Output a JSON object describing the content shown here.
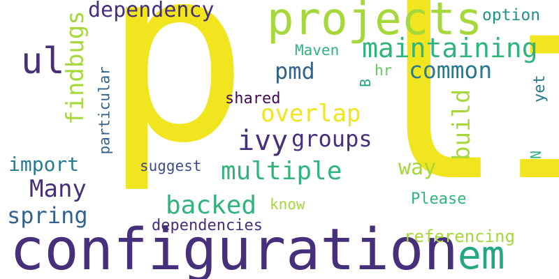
{
  "colors": {
    "background": "#ffffff",
    "yellow": "#f0e51f",
    "lime": "#a6d83c",
    "green_light": "#63c963",
    "green": "#2fb47c",
    "teal_green": "#24a884",
    "teal": "#1f928c",
    "teal_dark": "#297a8e",
    "blue": "#33638d",
    "indigo": "#3d4d8a",
    "purple": "#462f7b",
    "purple_dark": "#440a56"
  },
  "words": {
    "p": "p",
    "li": "li",
    "configuration": "configuration",
    "projects": "projects",
    "em": "em",
    "ul": "ul",
    "maintaining": "maintaining",
    "findbugs": "findbugs",
    "common": "common",
    "overlap": "overlap",
    "multiple": "multiple",
    "dependency": "dependency",
    "pmd": "pmd",
    "ivy": "ivy",
    "groups": "groups",
    "build": "build",
    "Many": "Many",
    "backed": "backed",
    "import": "import",
    "spring": "spring",
    "way": "way",
    "dependencies": "dependencies",
    "referencing": "referencing",
    "shared": "shared",
    "Maven": "Maven",
    "suggest": "suggest",
    "particular": "particular",
    "option": "option",
    "Please": "Please",
    "know": "know",
    "hr": "hr",
    "B": "B",
    "yet": "yet",
    "N": "N"
  }
}
